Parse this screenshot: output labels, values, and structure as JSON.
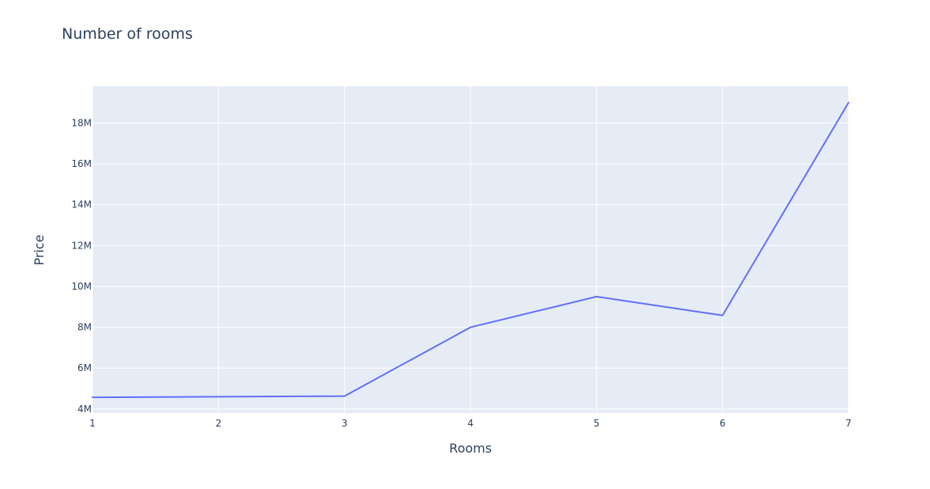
{
  "chart_data": {
    "type": "line",
    "title": "Number of rooms",
    "xlabel": "Rooms",
    "ylabel": "Price",
    "x": [
      1,
      2,
      3,
      4,
      5,
      6,
      7
    ],
    "series": [
      {
        "values": [
          4570000,
          4600000,
          4630000,
          8000000,
          9500000,
          8580000,
          19000000
        ]
      }
    ],
    "xlim": [
      1,
      7
    ],
    "ylim": [
      3800000,
      19800000
    ],
    "xticks": [
      1,
      2,
      3,
      4,
      5,
      6,
      7
    ],
    "yticks": [
      4000000,
      6000000,
      8000000,
      10000000,
      12000000,
      14000000,
      16000000,
      18000000
    ],
    "ytick_labels": [
      "4M",
      "6M",
      "8M",
      "10M",
      "12M",
      "14M",
      "16M",
      "18M"
    ],
    "grid": true,
    "colors": {
      "line": "#636efa",
      "plot_background": "#e5ecf6",
      "text": "#2a3f5f"
    }
  }
}
